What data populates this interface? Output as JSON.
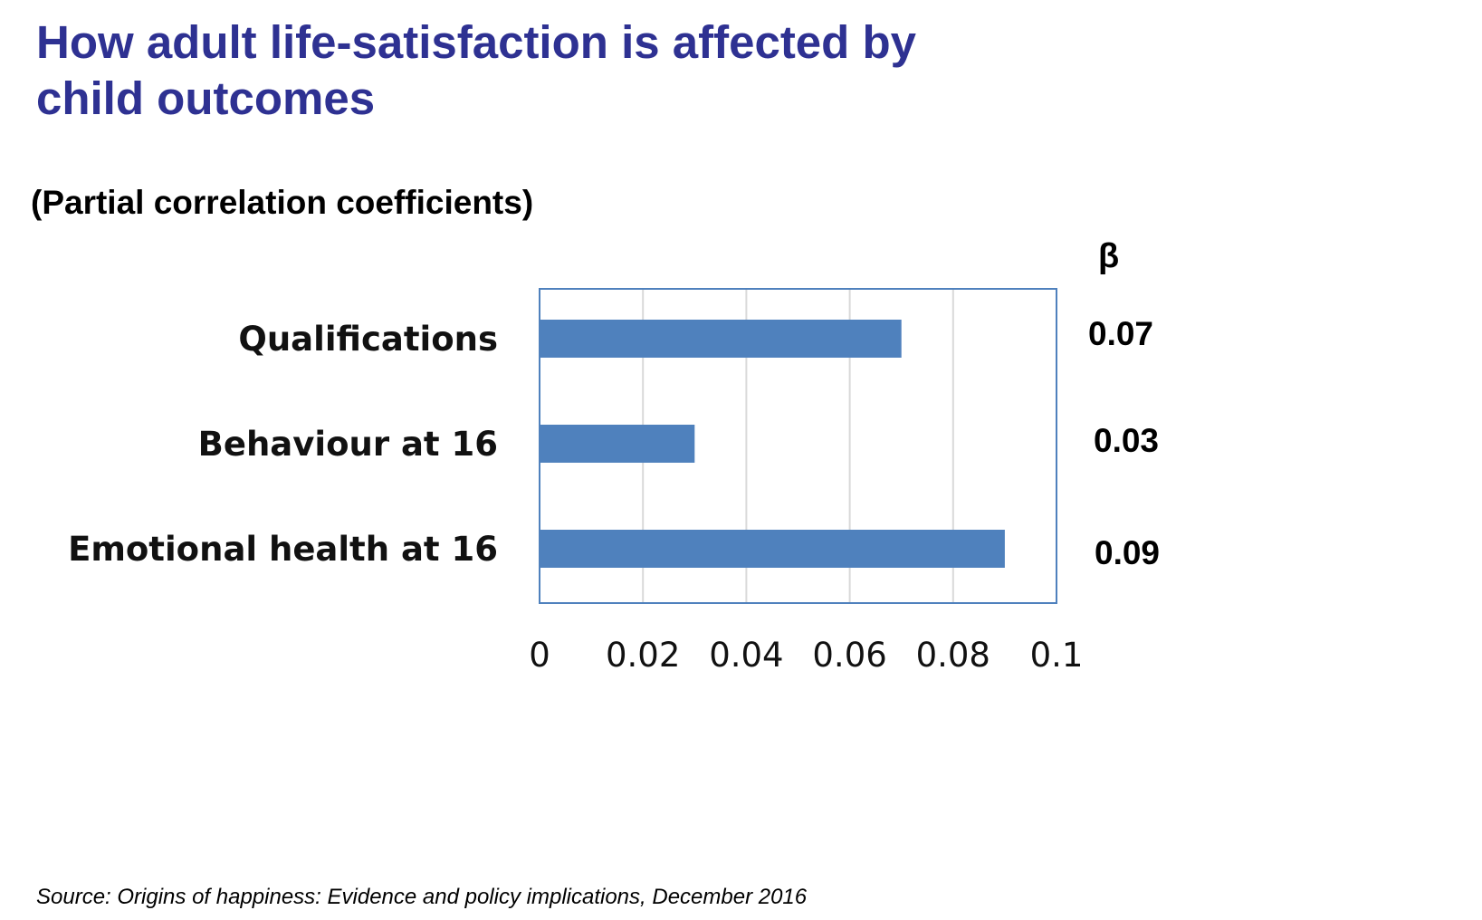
{
  "slide": {
    "title_line1": "How adult life-satisfaction is affected by",
    "title_line2": "child outcomes",
    "subtitle": "(Partial correlation coefficients)",
    "beta_header": "β",
    "beta_values": [
      "0.07",
      "0.03",
      "0.09"
    ],
    "source": "Source: Origins of happiness: Evidence and policy implications, December 2016"
  },
  "colors": {
    "title": "#2E3192",
    "bar": "#4F81BD",
    "plot_border": "#4F81BD",
    "gridline": "#D9D9D9"
  },
  "chart_data": {
    "type": "bar",
    "orientation": "horizontal",
    "categories": [
      "Qualifications",
      "Behaviour at 16",
      "Emotional health at 16"
    ],
    "values": [
      0.07,
      0.03,
      0.09
    ],
    "xlim": [
      0,
      0.1
    ],
    "x_ticks": [
      "0",
      "0.02",
      "0.04",
      "0.06",
      "0.08",
      "0.1"
    ],
    "grid": "vertical",
    "legend": "none"
  }
}
